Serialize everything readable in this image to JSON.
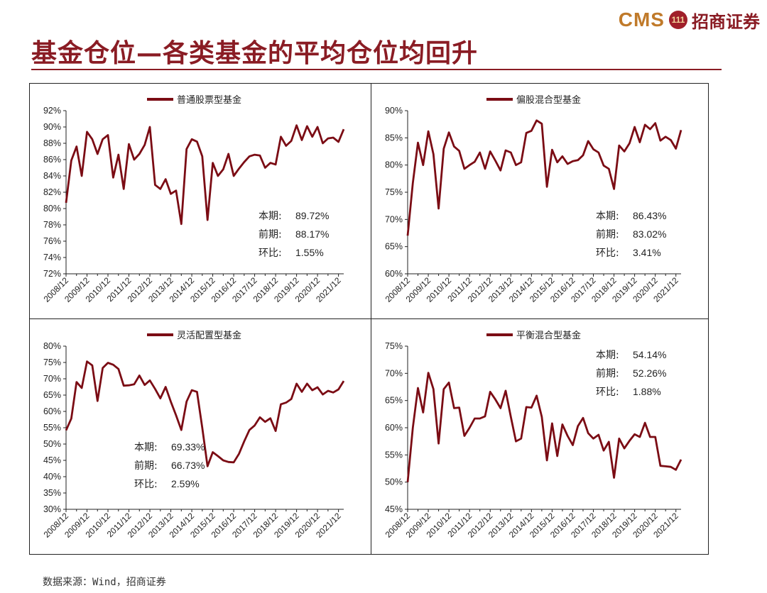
{
  "header": {
    "title": "基金仓位—各类基金的平均仓位均回升",
    "logo_cms": "CMS",
    "logo_badge": "111",
    "logo_cn": "招商证券"
  },
  "footer": {
    "source": "数据来源：Wind，招商证券"
  },
  "colors": {
    "line": "#7b0c14",
    "title": "#8a1c24",
    "axis": "#222222"
  },
  "chart_data": [
    {
      "type": "line",
      "legend": "普通股票型基金",
      "legend_position": "top-center",
      "grid": false,
      "ylim": [
        0.72,
        0.92
      ],
      "ystep": 0.02,
      "x_start": "2008/12",
      "x_ticks": [
        "2008/12",
        "2009/12",
        "2010/12",
        "2011/12",
        "2012/12",
        "2013/12",
        "2014/12",
        "2015/12",
        "2016/12",
        "2017/12",
        "2018/12",
        "2019/12",
        "2020/12",
        "2021/12"
      ],
      "x": [
        "2008/12",
        "2009/03",
        "2009/06",
        "2009/09",
        "2009/12",
        "2010/03",
        "2010/06",
        "2010/09",
        "2010/12",
        "2011/03",
        "2011/06",
        "2011/09",
        "2011/12",
        "2012/03",
        "2012/06",
        "2012/09",
        "2012/12",
        "2013/03",
        "2013/06",
        "2013/09",
        "2013/12",
        "2014/03",
        "2014/06",
        "2014/09",
        "2014/12",
        "2015/03",
        "2015/06",
        "2015/09",
        "2015/12",
        "2016/03",
        "2016/06",
        "2016/09",
        "2016/12",
        "2017/03",
        "2017/06",
        "2017/09",
        "2017/12",
        "2018/03",
        "2018/06",
        "2018/09",
        "2018/12",
        "2019/03",
        "2019/06",
        "2019/09",
        "2019/12",
        "2020/03",
        "2020/06",
        "2020/09",
        "2020/12",
        "2021/03",
        "2021/06",
        "2021/09",
        "2021/12",
        "2022/03"
      ],
      "values": [
        0.807,
        0.859,
        0.876,
        0.84,
        0.894,
        0.885,
        0.867,
        0.885,
        0.89,
        0.838,
        0.866,
        0.824,
        0.879,
        0.86,
        0.867,
        0.878,
        0.9,
        0.829,
        0.824,
        0.836,
        0.818,
        0.822,
        0.781,
        0.873,
        0.885,
        0.882,
        0.864,
        0.786,
        0.856,
        0.84,
        0.848,
        0.867,
        0.84,
        0.849,
        0.857,
        0.864,
        0.866,
        0.865,
        0.85,
        0.856,
        0.854,
        0.888,
        0.877,
        0.883,
        0.902,
        0.884,
        0.901,
        0.888,
        0.9,
        0.88,
        0.886,
        0.887,
        0.8817,
        0.8972
      ],
      "annotations": [
        {
          "label": "本期:",
          "value": "89.72%"
        },
        {
          "label": "前期:",
          "value": "88.17%"
        },
        {
          "label": "环比:",
          "value": "1.55%"
        }
      ],
      "annotations_position": "bottom-right"
    },
    {
      "type": "line",
      "legend": "偏股混合型基金",
      "legend_position": "top-center",
      "grid": false,
      "ylim": [
        0.6,
        0.9
      ],
      "ystep": 0.05,
      "x_start": "2008/12",
      "x_ticks": [
        "2008/12",
        "2009/12",
        "2010/12",
        "2011/12",
        "2012/12",
        "2013/12",
        "2014/12",
        "2015/12",
        "2016/12",
        "2017/12",
        "2018/12",
        "2019/12",
        "2020/12",
        "2021/12"
      ],
      "x": [
        "2008/12",
        "2009/03",
        "2009/06",
        "2009/09",
        "2009/12",
        "2010/03",
        "2010/06",
        "2010/09",
        "2010/12",
        "2011/03",
        "2011/06",
        "2011/09",
        "2011/12",
        "2012/03",
        "2012/06",
        "2012/09",
        "2012/12",
        "2013/03",
        "2013/06",
        "2013/09",
        "2013/12",
        "2014/03",
        "2014/06",
        "2014/09",
        "2014/12",
        "2015/03",
        "2015/06",
        "2015/09",
        "2015/12",
        "2016/03",
        "2016/06",
        "2016/09",
        "2016/12",
        "2017/03",
        "2017/06",
        "2017/09",
        "2017/12",
        "2018/03",
        "2018/06",
        "2018/09",
        "2018/12",
        "2019/03",
        "2019/06",
        "2019/09",
        "2019/12",
        "2020/03",
        "2020/06",
        "2020/09",
        "2020/12",
        "2021/03",
        "2021/06",
        "2021/09",
        "2021/12",
        "2022/03"
      ],
      "values": [
        0.67,
        0.767,
        0.841,
        0.8,
        0.862,
        0.82,
        0.72,
        0.83,
        0.86,
        0.834,
        0.826,
        0.793,
        0.8,
        0.806,
        0.823,
        0.793,
        0.825,
        0.808,
        0.79,
        0.827,
        0.823,
        0.8,
        0.805,
        0.859,
        0.863,
        0.882,
        0.876,
        0.76,
        0.828,
        0.805,
        0.816,
        0.802,
        0.807,
        0.809,
        0.818,
        0.844,
        0.829,
        0.823,
        0.799,
        0.793,
        0.756,
        0.836,
        0.825,
        0.84,
        0.87,
        0.842,
        0.874,
        0.866,
        0.877,
        0.845,
        0.852,
        0.846,
        0.8302,
        0.8643
      ],
      "annotations": [
        {
          "label": "本期:",
          "value": "86.43%"
        },
        {
          "label": "前期:",
          "value": "83.02%"
        },
        {
          "label": "环比:",
          "value": "3.41%"
        }
      ],
      "annotations_position": "bottom-right"
    },
    {
      "type": "line",
      "legend": "灵活配置型基金",
      "legend_position": "top-center",
      "grid": false,
      "ylim": [
        0.3,
        0.8
      ],
      "ystep": 0.05,
      "x_start": "2008/12",
      "x_ticks": [
        "2008/12",
        "2009/12",
        "2010/12",
        "2011/12",
        "2012/12",
        "2013/12",
        "2014/12",
        "2015/12",
        "2016/12",
        "2017/12",
        "2018/12",
        "2019/12",
        "2020/12",
        "2021/12"
      ],
      "x": [
        "2008/12",
        "2009/03",
        "2009/06",
        "2009/09",
        "2009/12",
        "2010/03",
        "2010/06",
        "2010/09",
        "2010/12",
        "2011/03",
        "2011/06",
        "2011/09",
        "2011/12",
        "2012/03",
        "2012/06",
        "2012/09",
        "2012/12",
        "2013/03",
        "2013/06",
        "2013/09",
        "2013/12",
        "2014/03",
        "2014/06",
        "2014/09",
        "2014/12",
        "2015/03",
        "2015/06",
        "2015/09",
        "2015/12",
        "2016/03",
        "2016/06",
        "2016/09",
        "2016/12",
        "2017/03",
        "2017/06",
        "2017/09",
        "2017/12",
        "2018/03",
        "2018/06",
        "2018/09",
        "2018/12",
        "2019/03",
        "2019/06",
        "2019/09",
        "2019/12",
        "2020/03",
        "2020/06",
        "2020/09",
        "2020/12",
        "2021/03",
        "2021/06",
        "2021/09",
        "2021/12",
        "2022/03"
      ],
      "values": [
        0.542,
        0.578,
        0.69,
        0.672,
        0.753,
        0.741,
        0.632,
        0.733,
        0.749,
        0.743,
        0.73,
        0.679,
        0.68,
        0.683,
        0.71,
        0.681,
        0.695,
        0.669,
        0.64,
        0.675,
        0.63,
        0.588,
        0.543,
        0.63,
        0.665,
        0.66,
        0.55,
        0.432,
        0.475,
        0.463,
        0.45,
        0.445,
        0.444,
        0.47,
        0.508,
        0.543,
        0.557,
        0.582,
        0.568,
        0.579,
        0.54,
        0.622,
        0.627,
        0.638,
        0.685,
        0.66,
        0.685,
        0.665,
        0.674,
        0.652,
        0.663,
        0.658,
        0.6673,
        0.6933
      ],
      "annotations": [
        {
          "label": "本期:",
          "value": "69.33%"
        },
        {
          "label": "前期:",
          "value": "66.73%"
        },
        {
          "label": "环比:",
          "value": "2.59%"
        }
      ],
      "annotations_position": "bottom-center"
    },
    {
      "type": "line",
      "legend": "平衡混合型基金",
      "legend_position": "top-center",
      "grid": false,
      "ylim": [
        0.45,
        0.75
      ],
      "ystep": 0.05,
      "x_start": "2008/12",
      "x_ticks": [
        "2008/12",
        "2009/12",
        "2010/12",
        "2011/12",
        "2012/12",
        "2013/12",
        "2014/12",
        "2015/12",
        "2016/12",
        "2017/12",
        "2018/12",
        "2019/12",
        "2020/12",
        "2021/12"
      ],
      "x": [
        "2008/12",
        "2009/03",
        "2009/06",
        "2009/09",
        "2009/12",
        "2010/03",
        "2010/06",
        "2010/09",
        "2010/12",
        "2011/03",
        "2011/06",
        "2011/09",
        "2011/12",
        "2012/03",
        "2012/06",
        "2012/09",
        "2012/12",
        "2013/03",
        "2013/06",
        "2013/09",
        "2013/12",
        "2014/03",
        "2014/06",
        "2014/09",
        "2014/12",
        "2015/03",
        "2015/06",
        "2015/09",
        "2015/12",
        "2016/03",
        "2016/06",
        "2016/09",
        "2016/12",
        "2017/03",
        "2017/06",
        "2017/09",
        "2017/12",
        "2018/03",
        "2018/06",
        "2018/09",
        "2018/12",
        "2019/03",
        "2019/06",
        "2019/09",
        "2019/12",
        "2020/03",
        "2020/06",
        "2020/09",
        "2020/12",
        "2021/03",
        "2021/06",
        "2021/09",
        "2021/12",
        "2022/03"
      ],
      "values": [
        0.5,
        0.6,
        0.673,
        0.628,
        0.701,
        0.671,
        0.571,
        0.671,
        0.683,
        0.636,
        0.637,
        0.585,
        0.6,
        0.617,
        0.617,
        0.621,
        0.666,
        0.652,
        0.636,
        0.668,
        0.62,
        0.575,
        0.58,
        0.638,
        0.637,
        0.659,
        0.62,
        0.54,
        0.608,
        0.548,
        0.606,
        0.585,
        0.568,
        0.603,
        0.618,
        0.59,
        0.58,
        0.587,
        0.558,
        0.574,
        0.508,
        0.58,
        0.562,
        0.576,
        0.588,
        0.583,
        0.609,
        0.583,
        0.583,
        0.53,
        0.529,
        0.528,
        0.5226,
        0.5414
      ],
      "annotations": [
        {
          "label": "本期:",
          "value": "54.14%"
        },
        {
          "label": "前期:",
          "value": "52.26%"
        },
        {
          "label": "环比:",
          "value": "1.88%"
        }
      ],
      "annotations_position": "top-right"
    }
  ]
}
